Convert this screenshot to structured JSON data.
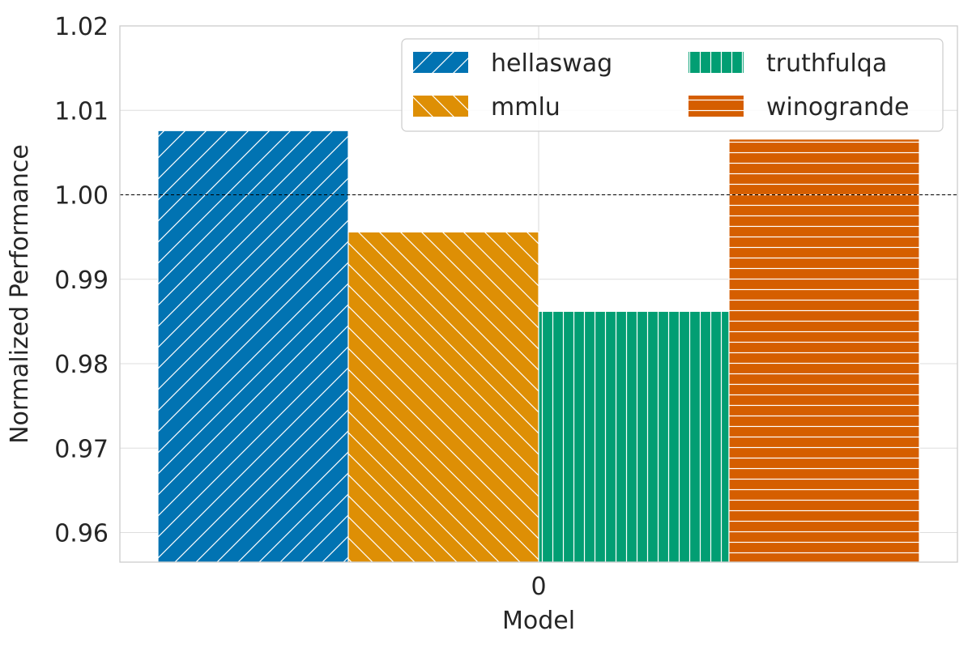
{
  "chart_data": {
    "type": "bar",
    "title": "",
    "xlabel": "Model",
    "ylabel": "Normalized Performance",
    "categories": [
      "0"
    ],
    "ylim": [
      0.9565,
      1.02
    ],
    "yticks": [
      0.96,
      0.97,
      0.98,
      0.99,
      1.0,
      1.01,
      1.02
    ],
    "ytick_labels": [
      "0.96",
      "0.97",
      "0.98",
      "0.99",
      "1.00",
      "1.01",
      "1.02"
    ],
    "reference_line": {
      "y": 1.0,
      "style": "dashed",
      "color": "#000000"
    },
    "grid": true,
    "legend": {
      "placement": "top-right",
      "columns": 2
    },
    "series": [
      {
        "name": "hellaswag",
        "values": [
          1.0076
        ],
        "color": "#0173b2",
        "hatch": "diagonal-up"
      },
      {
        "name": "mmlu",
        "values": [
          0.9956
        ],
        "color": "#de8f05",
        "hatch": "diagonal-down"
      },
      {
        "name": "truthfulqa",
        "values": [
          0.9862
        ],
        "color": "#029e73",
        "hatch": "vertical"
      },
      {
        "name": "winogrande",
        "values": [
          1.0066
        ],
        "color": "#d55e00",
        "hatch": "horizontal"
      }
    ]
  }
}
